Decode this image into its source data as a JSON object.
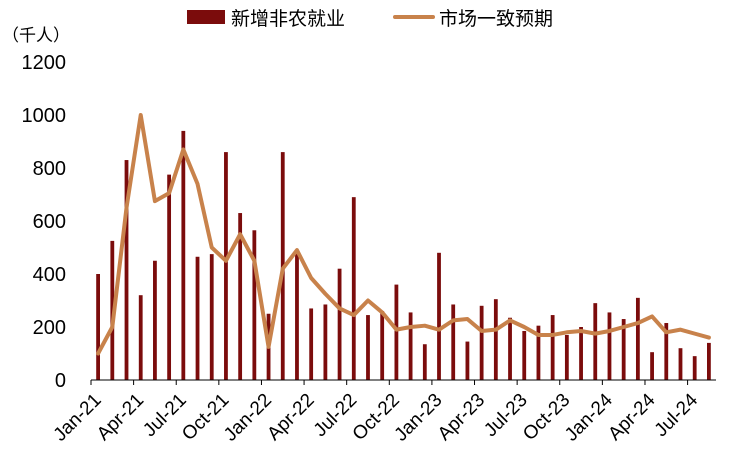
{
  "chart_data": {
    "type": "bar",
    "unit_label": "（千人）",
    "ylim": [
      0,
      1200
    ],
    "y_ticks": [
      0,
      200,
      400,
      600,
      800,
      1000,
      1200
    ],
    "x": [
      "Jan-21",
      "Feb-21",
      "Mar-21",
      "Apr-21",
      "May-21",
      "Jun-21",
      "Jul-21",
      "Aug-21",
      "Sep-21",
      "Oct-21",
      "Nov-21",
      "Dec-21",
      "Jan-22",
      "Feb-22",
      "Mar-22",
      "Apr-22",
      "May-22",
      "Jun-22",
      "Jul-22",
      "Aug-22",
      "Sep-22",
      "Oct-22",
      "Nov-22",
      "Dec-22",
      "Jan-23",
      "Feb-23",
      "Mar-23",
      "Apr-23",
      "May-23",
      "Jun-23",
      "Jul-23",
      "Aug-23",
      "Sep-23",
      "Oct-23",
      "Nov-23",
      "Dec-23",
      "Jan-24",
      "Feb-24",
      "Mar-24",
      "Apr-24",
      "May-24",
      "Jun-24",
      "Jul-24",
      "Aug-24"
    ],
    "x_tick_labels": [
      "Jan-21",
      "Apr-21",
      "Jul-21",
      "Oct-21",
      "Jan-22",
      "Apr-22",
      "Jul-22",
      "Oct-22",
      "Jan-23",
      "Apr-23",
      "Jul-23",
      "Oct-23",
      "Jan-24",
      "Apr-24",
      "Jul-24"
    ],
    "legend_position": "top",
    "grid": false,
    "series": [
      {
        "name": "新增非农就业",
        "type": "bar",
        "color": "#7b0c0c",
        "values": [
          400,
          525,
          830,
          320,
          450,
          775,
          940,
          465,
          475,
          860,
          630,
          565,
          250,
          860,
          480,
          270,
          285,
          420,
          690,
          245,
          260,
          360,
          255,
          135,
          480,
          285,
          145,
          280,
          305,
          235,
          185,
          205,
          245,
          170,
          200,
          290,
          255,
          230,
          310,
          105,
          215,
          120,
          90,
          140
        ]
      },
      {
        "name": "市场一致预期",
        "type": "line",
        "color": "#c8824b",
        "values": [
          100,
          200,
          650,
          1000,
          675,
          705,
          870,
          740,
          500,
          450,
          550,
          450,
          125,
          420,
          490,
          385,
          325,
          270,
          245,
          300,
          255,
          190,
          200,
          205,
          190,
          225,
          230,
          185,
          190,
          225,
          200,
          170,
          170,
          180,
          185,
          175,
          185,
          200,
          215,
          240,
          180,
          190,
          175,
          160
        ]
      }
    ]
  }
}
